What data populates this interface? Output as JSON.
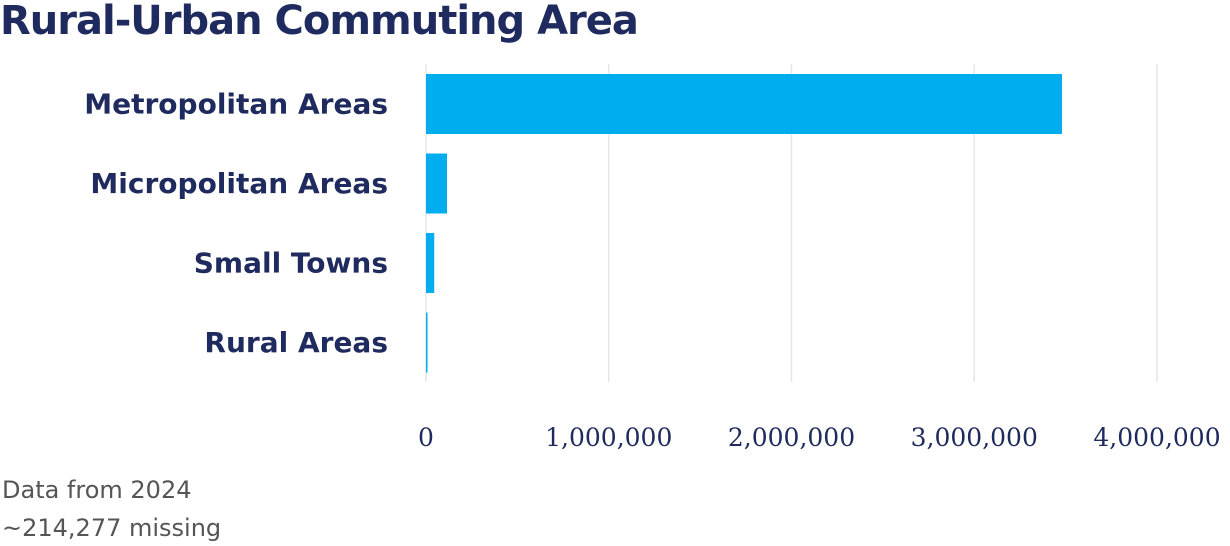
{
  "chart_data": {
    "type": "bar",
    "orientation": "horizontal",
    "title": "Rural-Urban Commuting Area",
    "categories": [
      "Metropolitan Areas",
      "Micropolitan Areas",
      "Small Towns",
      "Rural Areas"
    ],
    "values": [
      3480000,
      115000,
      45000,
      4000
    ],
    "xlim": [
      0,
      4000000
    ],
    "x_ticks": [
      0,
      1000000,
      2000000,
      3000000,
      4000000
    ],
    "x_tick_labels": [
      "0",
      "1,000,000",
      "2,000,000",
      "3,000,000",
      "4,000,000"
    ],
    "xlabel": "",
    "ylabel": "",
    "grid": "vertical",
    "bar_color": "#00adef"
  },
  "footer": {
    "year_note": "Data from 2024",
    "missing_note": "~214,277 missing"
  },
  "colors": {
    "title": "#1f2a5e",
    "gridline": "#e3e6ea",
    "footer_text": "#555555"
  }
}
